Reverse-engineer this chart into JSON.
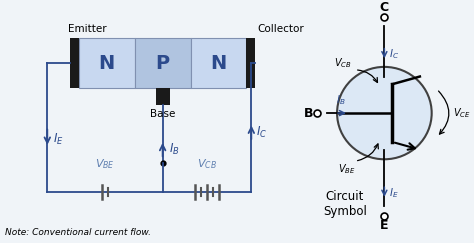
{
  "bg_color": "#f0f4f8",
  "line_color": "#2c4a8c",
  "transistor_box_color": "#c8d8f0",
  "transistor_center_color": "#b0c4e0",
  "transistor_border_color": "#8090b0",
  "transistor_dark_color": "#1a1a1a",
  "circle_fill_color": "#dce8f5",
  "circle_edge_color": "#404040",
  "text_color": "#000000",
  "note_text": "Note: Conventional current flow.",
  "emitter_label": "Emitter",
  "collector_label": "Collector",
  "base_label": "Base",
  "circuit_symbol_label": "Circuit\nSymbol",
  "npn_labels": [
    "N",
    "P",
    "N"
  ],
  "C_label": "C",
  "B_label": "B",
  "E_label": "E"
}
